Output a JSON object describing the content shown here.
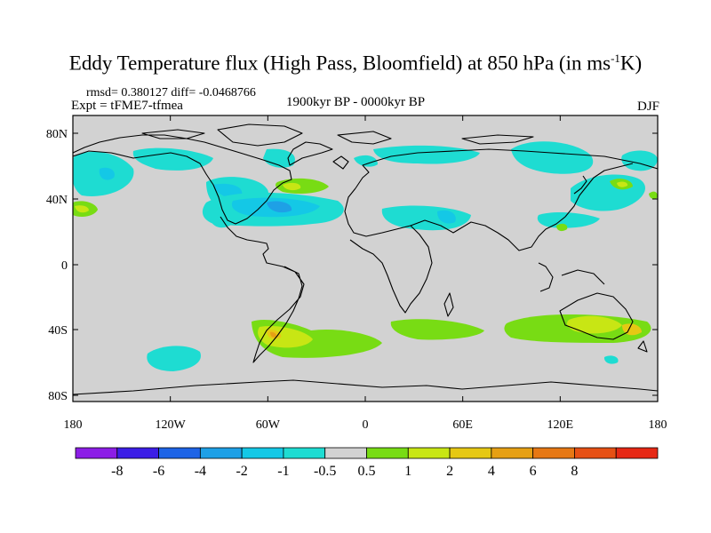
{
  "title": {
    "main": "Eddy Temperature flux (High Pass, Bloomfield) at 850 hPa (in ms",
    "sup": "-1",
    "tail": "K)"
  },
  "stats": "rmsd= 0.380127 diff= -0.0468766",
  "expt": "Expt = tFME7-tfmea",
  "period": "1900kyr BP - 0000kyr BP",
  "season": "DJF",
  "map": {
    "y_ticks": [
      "80N",
      "40N",
      "0",
      "40S",
      "80S"
    ],
    "x_ticks": [
      "180",
      "120W",
      "60W",
      "0",
      "60E",
      "120E",
      "180"
    ],
    "land_color": "#d2d2d2"
  },
  "colorbar": {
    "colors": [
      "#8c1ee6",
      "#3c1ee6",
      "#1e64e6",
      "#1ea0e6",
      "#14c8e6",
      "#1edcd2",
      "#d2d2d2",
      "#78dc14",
      "#c8e614",
      "#e6c814",
      "#e6a014",
      "#e67814",
      "#e65014",
      "#e62814"
    ],
    "labels": [
      "-8",
      "-6",
      "-4",
      "-2",
      "-1",
      "-0.5",
      "0.5",
      "1",
      "2",
      "4",
      "6",
      "8"
    ]
  }
}
